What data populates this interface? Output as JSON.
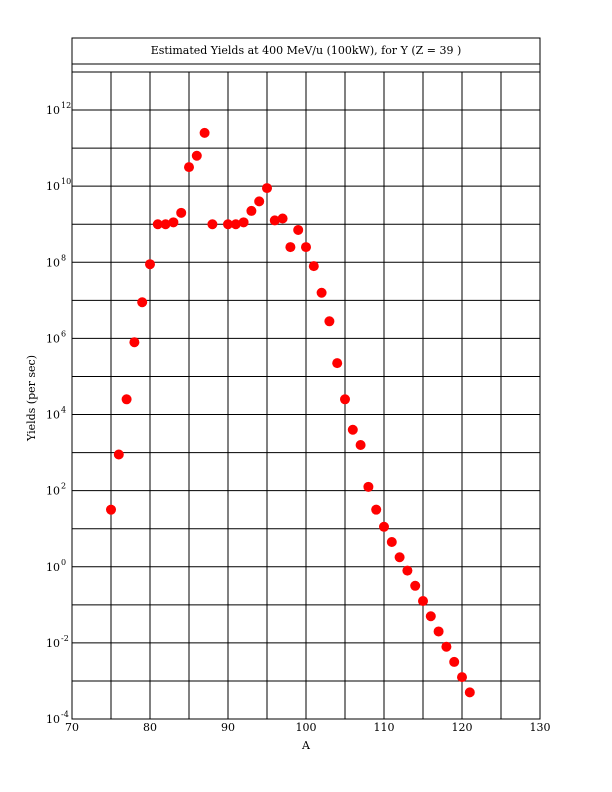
{
  "chart_data": {
    "type": "scatter",
    "title": "Estimated Yields at 400 MeV/u (100kW), for Y (Z = 39 )",
    "xlabel": "A",
    "ylabel": "Yields (per sec)",
    "xlim": [
      70,
      130
    ],
    "ylim_log10": [
      -4,
      13
    ],
    "y_scale": "log",
    "grid": true,
    "x_ticks": [
      70,
      80,
      90,
      100,
      110,
      120,
      130
    ],
    "x_tick_labels": [
      "70",
      "80",
      "90",
      "100",
      "110",
      "120",
      "130"
    ],
    "y_ticks_log10": [
      -4,
      -2,
      0,
      2,
      4,
      6,
      8,
      10,
      12
    ],
    "y_tick_base": "10",
    "y_tick_exponents": [
      "-4",
      "-2",
      "0",
      "2",
      "4",
      "6",
      "8",
      "10",
      "12"
    ],
    "marker_color": "#ff0000",
    "series": [
      {
        "x": [
          75,
          76,
          77,
          78,
          79,
          80,
          81,
          82,
          83,
          84,
          85,
          86,
          87,
          88,
          90,
          91,
          92,
          93,
          94,
          95,
          96,
          97,
          98,
          99,
          100,
          101,
          102,
          103,
          104,
          105,
          106,
          107,
          108,
          109,
          110,
          111,
          112,
          113,
          114,
          115,
          116,
          117,
          118,
          119,
          120,
          121
        ],
        "log10_y": [
          1.5,
          2.95,
          4.4,
          5.9,
          6.95,
          7.95,
          9.0,
          9.0,
          9.05,
          9.3,
          10.5,
          10.8,
          11.4,
          9.0,
          9.0,
          9.0,
          9.05,
          9.35,
          9.6,
          9.95,
          9.1,
          9.15,
          8.4,
          8.85,
          8.4,
          7.9,
          7.2,
          6.45,
          5.35,
          4.4,
          3.6,
          3.2,
          2.1,
          1.5,
          1.05,
          0.65,
          0.25,
          -0.1,
          -0.5,
          -0.9,
          -1.3,
          -1.7,
          -2.1,
          -2.5,
          -2.9,
          -3.3
        ]
      }
    ]
  }
}
